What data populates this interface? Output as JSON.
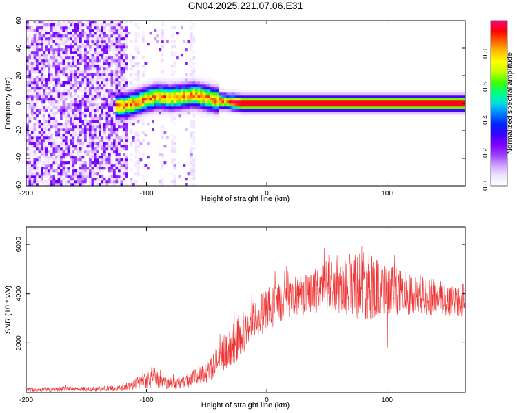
{
  "title": "GN04.2025.221.07.06.E31",
  "chart_data": [
    {
      "type": "heatmap",
      "xlabel": "Height of straight line (km)",
      "ylabel": "Frequency (Hz)",
      "xlim": [
        -200,
        165
      ],
      "ylim": [
        -60,
        60
      ],
      "xticks": [
        -200,
        -100,
        0,
        100
      ],
      "yticks": [
        -60,
        -40,
        -20,
        0,
        20,
        40,
        60
      ],
      "colorbar": {
        "label": "Normalized spectral amplitude",
        "range": [
          0,
          1
        ],
        "ticks": [
          0.0,
          0.2,
          0.4,
          0.6,
          0.8
        ],
        "colors": [
          "#ffffff",
          "#f0e4ff",
          "#cfa0ff",
          "#9c3cff",
          "#7a00ff",
          "#3a00ff",
          "#0024ff",
          "#0080ff",
          "#00e0e0",
          "#00ff80",
          "#40ff00",
          "#c0ff00",
          "#ffff00",
          "#ffc000",
          "#ff6000",
          "#ff0000",
          "#ff0080"
        ]
      },
      "signal_band": {
        "description_free": true,
        "center_track": [
          [
            -120,
            -2
          ],
          [
            -110,
            0
          ],
          [
            -100,
            3
          ],
          [
            -90,
            5
          ],
          [
            -80,
            4
          ],
          [
            -70,
            5
          ],
          [
            -60,
            6
          ],
          [
            -50,
            4
          ],
          [
            -40,
            2
          ],
          [
            -30,
            1
          ],
          [
            -20,
            0
          ],
          [
            0,
            0
          ],
          [
            50,
            0
          ],
          [
            100,
            0
          ],
          [
            165,
            0
          ]
        ],
        "noise_region_x": [
          -200,
          -115
        ],
        "sparse_region_x": [
          -115,
          -60
        ]
      },
      "grid": false
    },
    {
      "type": "line",
      "xlabel": "Height of straight line (km)",
      "ylabel": "SNR (10 * v/v)",
      "xlim": [
        -200,
        165
      ],
      "ylim": [
        0,
        6700
      ],
      "xticks": [
        -200,
        -100,
        0,
        100
      ],
      "yticks": [
        2000,
        4000,
        6000
      ],
      "color": "#ee3333",
      "envelope_x": [
        -200,
        -150,
        -125,
        -115,
        -105,
        -95,
        -85,
        -75,
        -65,
        -55,
        -45,
        -35,
        -25,
        -15,
        -5,
        5,
        15,
        25,
        35,
        50,
        65,
        80,
        95,
        110,
        125,
        140,
        155,
        165
      ],
      "envelope_low": [
        30,
        40,
        50,
        80,
        150,
        200,
        150,
        120,
        200,
        300,
        500,
        900,
        1200,
        1900,
        2300,
        2600,
        2900,
        3100,
        3200,
        3300,
        3100,
        2900,
        3000,
        3100,
        3200,
        3100,
        3000,
        3100
      ],
      "envelope_high": [
        200,
        230,
        250,
        400,
        800,
        1100,
        700,
        600,
        800,
        1100,
        1600,
        2400,
        3000,
        3500,
        4000,
        4400,
        4600,
        4700,
        4800,
        5400,
        5700,
        6000,
        5300,
        5000,
        4800,
        4600,
        4500,
        4500
      ],
      "grid": false
    }
  ]
}
